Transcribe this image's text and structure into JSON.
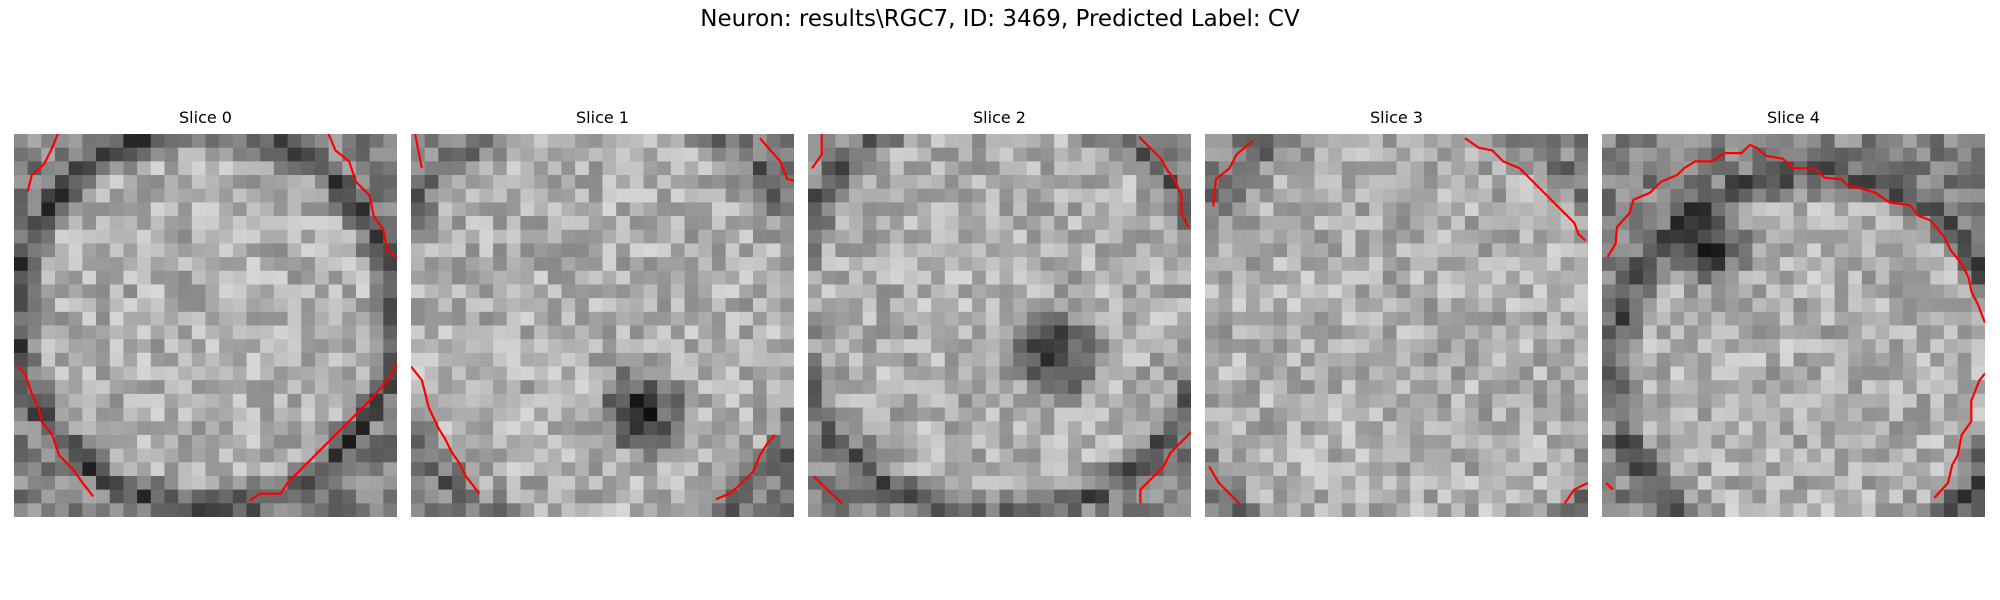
{
  "figure": {
    "title": "Neuron: results\\RGC7, ID: 3469, Predicted Label: CV"
  },
  "panels": [
    {
      "title": "Slice 0",
      "contour_color": "#ff0000"
    },
    {
      "title": "Slice 1",
      "contour_color": "#ff0000"
    },
    {
      "title": "Slice 2",
      "contour_color": "#ff0000"
    },
    {
      "title": "Slice 3",
      "contour_color": "#ff0000"
    },
    {
      "title": "Slice 4",
      "contour_color": "#ff0000"
    }
  ],
  "colormap": "gray"
}
